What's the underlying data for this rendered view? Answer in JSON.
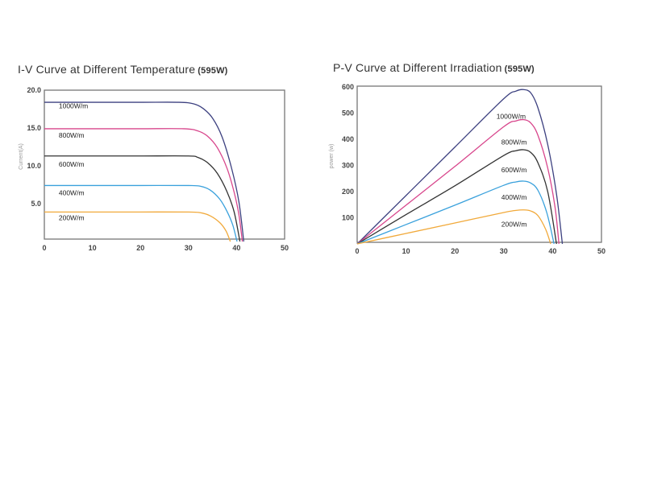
{
  "chart_data": [
    {
      "type": "line",
      "title": "I-V Curve at Different Temperature",
      "title_suffix": "(595W)",
      "xlabel": "",
      "ylabel": "Current(A)",
      "xlim": [
        0,
        50
      ],
      "ylim": [
        0,
        20
      ],
      "xticks": [
        0,
        10,
        20,
        30,
        40,
        50
      ],
      "xtick_labels": [
        "0",
        "10",
        "20",
        "30",
        "40",
        "50"
      ],
      "yticks": [
        5,
        10,
        15,
        20
      ],
      "ytick_labels": [
        "5.0",
        "10.0",
        "15.0",
        "20.0"
      ],
      "grid": false,
      "series": [
        {
          "name": "1000W/m",
          "color": "#3d4180",
          "label_at": [
            3,
            17.6
          ],
          "points": [
            [
              0,
              18.4
            ],
            [
              10,
              18.4
            ],
            [
              20,
              18.4
            ],
            [
              28,
              18.4
            ],
            [
              31,
              18.2
            ],
            [
              33,
              17.6
            ],
            [
              35,
              16.3
            ],
            [
              37,
              13.8
            ],
            [
              39,
              9.6
            ],
            [
              40.5,
              5.2
            ],
            [
              41.5,
              0
            ]
          ]
        },
        {
          "name": "800W/m",
          "color": "#d8468c",
          "label_at": [
            3,
            13.7
          ],
          "points": [
            [
              0,
              14.9
            ],
            [
              10,
              14.9
            ],
            [
              20,
              14.9
            ],
            [
              29,
              14.9
            ],
            [
              32,
              14.6
            ],
            [
              34,
              13.9
            ],
            [
              36,
              12.4
            ],
            [
              38,
              9.7
            ],
            [
              39.5,
              6.5
            ],
            [
              40.5,
              3.5
            ],
            [
              41.2,
              0
            ]
          ]
        },
        {
          "name": "600W/m",
          "color": "#333333",
          "label_at": [
            3,
            9.9
          ],
          "points": [
            [
              0,
              11.3
            ],
            [
              10,
              11.3
            ],
            [
              20,
              11.3
            ],
            [
              30,
              11.3
            ],
            [
              32,
              11.1
            ],
            [
              34,
              10.4
            ],
            [
              36,
              9.0
            ],
            [
              38,
              6.6
            ],
            [
              39.5,
              3.9
            ],
            [
              40.7,
              0
            ]
          ]
        },
        {
          "name": "400W/m",
          "color": "#3aa1dc",
          "label_at": [
            3,
            6.1
          ],
          "points": [
            [
              0,
              7.4
            ],
            [
              10,
              7.4
            ],
            [
              20,
              7.4
            ],
            [
              30,
              7.4
            ],
            [
              32.5,
              7.3
            ],
            [
              34.5,
              6.8
            ],
            [
              36.5,
              5.6
            ],
            [
              38,
              4.0
            ],
            [
              39.2,
              2.2
            ],
            [
              40.1,
              0
            ]
          ]
        },
        {
          "name": "200W/m",
          "color": "#f1a93a",
          "label_at": [
            3,
            2.8
          ],
          "points": [
            [
              0,
              3.9
            ],
            [
              10,
              3.9
            ],
            [
              20,
              3.9
            ],
            [
              30,
              3.9
            ],
            [
              32.5,
              3.8
            ],
            [
              34.5,
              3.4
            ],
            [
              36.5,
              2.5
            ],
            [
              37.8,
              1.4
            ],
            [
              38.7,
              0
            ]
          ]
        }
      ]
    },
    {
      "type": "line",
      "title": "P-V Curve at Different Irradiation",
      "title_suffix": "(595W)",
      "xlabel": "",
      "ylabel": "power (w)",
      "xlim": [
        0,
        50
      ],
      "ylim": [
        0,
        600
      ],
      "xticks": [
        0,
        10,
        20,
        30,
        40,
        50
      ],
      "xtick_labels": [
        "0",
        "10",
        "20",
        "30",
        "40",
        "50"
      ],
      "yticks": [
        100,
        200,
        300,
        400,
        500,
        600
      ],
      "ytick_labels": [
        "100",
        "200",
        "300",
        "400",
        "500",
        "600"
      ],
      "grid": false,
      "series": [
        {
          "name": "1000W/m",
          "color": "#3d4180",
          "label_at": [
            28.5,
            478
          ],
          "points": [
            [
              0,
              0
            ],
            [
              10,
              185
            ],
            [
              20,
              370
            ],
            [
              30,
              555
            ],
            [
              32.5,
              584
            ],
            [
              34,
              590
            ],
            [
              35.5,
              578
            ],
            [
              37,
              520
            ],
            [
              39,
              380
            ],
            [
              40.8,
              190
            ],
            [
              42,
              0
            ]
          ]
        },
        {
          "name": "800W/m",
          "color": "#d8468c",
          "label_at": [
            29.5,
            380
          ],
          "points": [
            [
              0,
              0
            ],
            [
              10,
              148
            ],
            [
              20,
              296
            ],
            [
              30,
              448
            ],
            [
              32.5,
              470
            ],
            [
              34,
              475
            ],
            [
              35.5,
              463
            ],
            [
              37,
              415
            ],
            [
              39,
              290
            ],
            [
              40.5,
              140
            ],
            [
              41.3,
              0
            ]
          ]
        },
        {
          "name": "600W/m",
          "color": "#333333",
          "label_at": [
            29.5,
            274
          ],
          "points": [
            [
              0,
              0
            ],
            [
              10,
              112
            ],
            [
              20,
              222
            ],
            [
              30,
              338
            ],
            [
              32.5,
              356
            ],
            [
              34,
              360
            ],
            [
              35.5,
              350
            ],
            [
              37,
              310
            ],
            [
              39,
              200
            ],
            [
              40.8,
              0
            ]
          ]
        },
        {
          "name": "400W/m",
          "color": "#3aa1dc",
          "label_at": [
            29.5,
            170
          ],
          "points": [
            [
              0,
              0
            ],
            [
              10,
              74
            ],
            [
              20,
              148
            ],
            [
              30,
              224
            ],
            [
              32.5,
              237
            ],
            [
              34,
              240
            ],
            [
              35.5,
              233
            ],
            [
              37,
              205
            ],
            [
              38.8,
              120
            ],
            [
              40.3,
              0
            ]
          ]
        },
        {
          "name": "200W/m",
          "color": "#f1a93a",
          "label_at": [
            29.5,
            66
          ],
          "points": [
            [
              0,
              0
            ],
            [
              10,
              40
            ],
            [
              20,
              80
            ],
            [
              30,
              120
            ],
            [
              32.5,
              128
            ],
            [
              34,
              130
            ],
            [
              35.5,
              126
            ],
            [
              37,
              108
            ],
            [
              38.6,
              55
            ],
            [
              39.6,
              0
            ]
          ]
        }
      ]
    }
  ]
}
